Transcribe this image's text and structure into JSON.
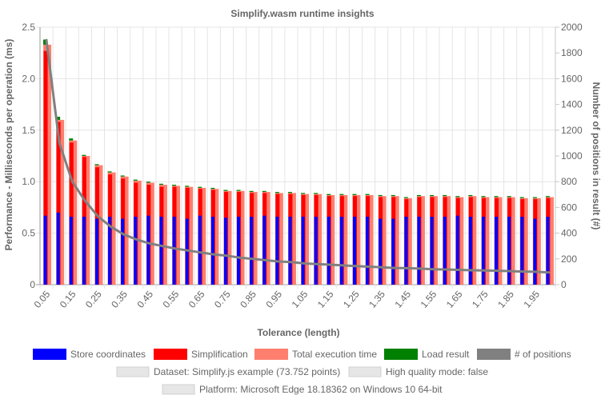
{
  "chart_data": {
    "type": "bar",
    "title": "Simplify.wasm runtime insights",
    "xlabel": "Tolerance (length)",
    "ylabel": "Performance - Milliseconds per operation (ms)",
    "y2label": "Number of positions in result (#)",
    "ylim": [
      0,
      2.5
    ],
    "y2lim": [
      0,
      2000
    ],
    "y_ticks": [
      "0",
      "0.5",
      "1.0",
      "1.5",
      "2.0",
      "2.5"
    ],
    "y2_ticks": [
      "0",
      "200",
      "400",
      "600",
      "800",
      "1000",
      "1200",
      "1400",
      "1600",
      "1800",
      "2000"
    ],
    "categories": [
      "0.05",
      "0.1",
      "0.15",
      "0.2",
      "0.25",
      "0.3",
      "0.35",
      "0.4",
      "0.45",
      "0.5",
      "0.55",
      "0.6",
      "0.65",
      "0.7",
      "0.75",
      "0.8",
      "0.85",
      "0.9",
      "0.95",
      "1",
      "1.05",
      "1.1",
      "1.15",
      "1.2",
      "1.25",
      "1.3",
      "1.35",
      "1.4",
      "1.45",
      "1.5",
      "1.55",
      "1.6",
      "1.65",
      "1.7",
      "1.75",
      "1.8",
      "1.85",
      "1.9",
      "1.95",
      "2"
    ],
    "x_tick_labels": [
      "0.05",
      "",
      "0.15",
      "",
      "0.25",
      "",
      "0.35",
      "",
      "0.45",
      "",
      "0.55",
      "",
      "0.65",
      "",
      "0.75",
      "",
      "0.85",
      "",
      "0.95",
      "",
      "1.05",
      "",
      "1.15",
      "",
      "1.25",
      "",
      "1.35",
      "",
      "1.45",
      "",
      "1.55",
      "",
      "1.65",
      "",
      "1.75",
      "",
      "1.85",
      "",
      "1.95",
      ""
    ],
    "grid": true,
    "legend_position": "bottom",
    "series": [
      {
        "name": "Store coordinates",
        "color": "#0000ff",
        "axis": "left",
        "type": "bar",
        "values": [
          0.67,
          0.7,
          0.66,
          0.66,
          0.64,
          0.66,
          0.64,
          0.66,
          0.67,
          0.66,
          0.66,
          0.64,
          0.67,
          0.66,
          0.65,
          0.66,
          0.66,
          0.67,
          0.66,
          0.66,
          0.66,
          0.66,
          0.66,
          0.66,
          0.66,
          0.66,
          0.64,
          0.64,
          0.66,
          0.66,
          0.66,
          0.66,
          0.67,
          0.66,
          0.66,
          0.66,
          0.66,
          0.66,
          0.64,
          0.66
        ]
      },
      {
        "name": "Simplification",
        "color": "#ff0000",
        "axis": "left",
        "type": "bar",
        "values": [
          2.27,
          1.58,
          1.38,
          1.24,
          1.14,
          1.07,
          1.03,
          0.99,
          0.97,
          0.95,
          0.95,
          0.94,
          0.93,
          0.92,
          0.9,
          0.9,
          0.89,
          0.89,
          0.88,
          0.88,
          0.87,
          0.87,
          0.86,
          0.86,
          0.86,
          0.86,
          0.85,
          0.85,
          0.83,
          0.85,
          0.85,
          0.85,
          0.84,
          0.85,
          0.84,
          0.84,
          0.84,
          0.83,
          0.83,
          0.84
        ]
      },
      {
        "name": "Total execution time",
        "color": "#ff7f6f",
        "axis": "left",
        "type": "bar",
        "values": [
          2.33,
          1.6,
          1.4,
          1.25,
          1.16,
          1.09,
          1.05,
          1.01,
          0.99,
          0.97,
          0.96,
          0.95,
          0.94,
          0.93,
          0.91,
          0.91,
          0.9,
          0.9,
          0.89,
          0.89,
          0.88,
          0.88,
          0.87,
          0.87,
          0.87,
          0.87,
          0.86,
          0.86,
          0.84,
          0.86,
          0.86,
          0.86,
          0.85,
          0.86,
          0.85,
          0.85,
          0.85,
          0.84,
          0.84,
          0.85
        ]
      },
      {
        "name": "Load result",
        "color": "#008000",
        "axis": "left",
        "type": "bar",
        "values": [
          0.05,
          0.03,
          0.02,
          0.01,
          0.01,
          0.01,
          0.01,
          0.01,
          0.01,
          0.01,
          0.01,
          0.01,
          0.01,
          0.01,
          0.01,
          0.01,
          0.01,
          0.01,
          0.01,
          0.01,
          0.01,
          0.01,
          0.01,
          0.01,
          0.01,
          0.01,
          0.01,
          0.01,
          0.01,
          0.01,
          0.01,
          0.01,
          0.01,
          0.01,
          0.01,
          0.01,
          0.01,
          0.01,
          0.01,
          0.01
        ]
      },
      {
        "name": "# of positions",
        "color": "#808080",
        "axis": "right",
        "type": "line",
        "values": [
          1900,
          1100,
          800,
          650,
          530,
          450,
          390,
          350,
          320,
          300,
          280,
          265,
          250,
          235,
          225,
          210,
          200,
          190,
          180,
          175,
          165,
          160,
          155,
          150,
          145,
          140,
          135,
          130,
          128,
          125,
          120,
          118,
          115,
          112,
          110,
          108,
          105,
          102,
          100,
          95
        ]
      }
    ],
    "info_boxes": [
      "Dataset: Simplify.js example (73.752 points)",
      "High quality mode: false",
      "Platform: Microsoft Edge 18.18362 on Windows 10 64-bit"
    ]
  }
}
